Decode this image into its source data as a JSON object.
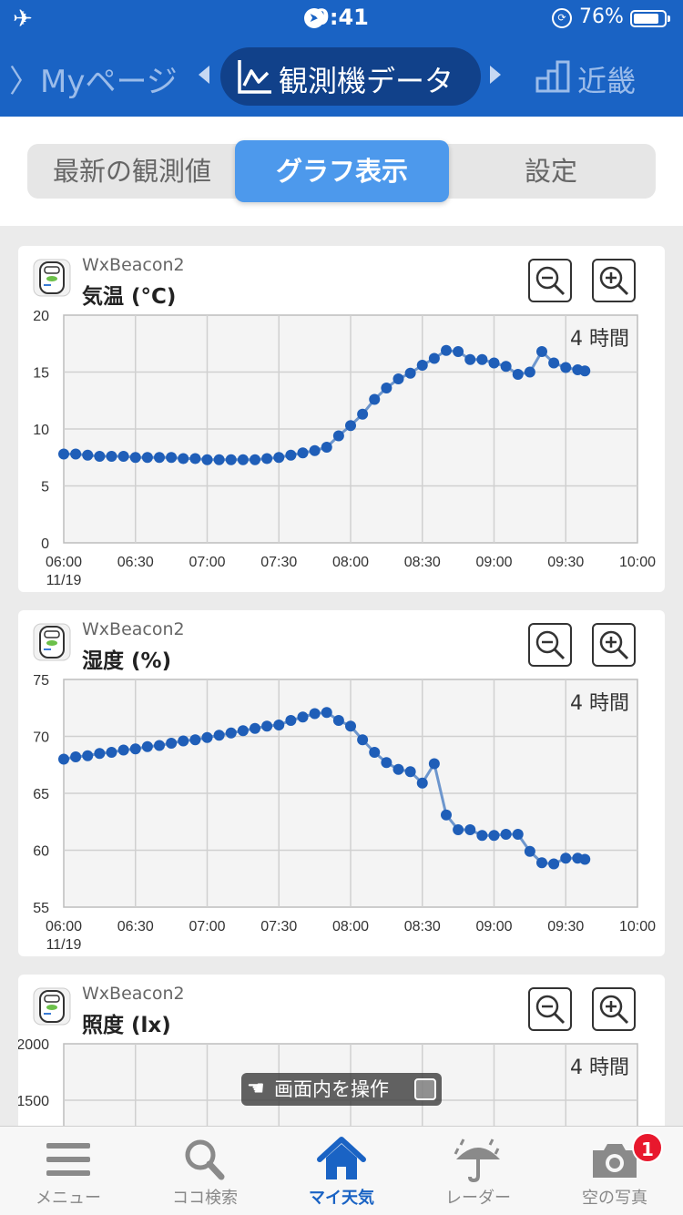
{
  "status_bar": {
    "time": "9:41",
    "battery": "76%",
    "battery_level": 0.76
  },
  "nav": {
    "prev": "〉Myページ",
    "current": "観測機データ",
    "next": "近畿"
  },
  "segments": {
    "items": [
      "最新の観測値",
      "グラフ表示",
      "設定"
    ],
    "selected": "グラフ表示"
  },
  "cards": [
    {
      "device": "WxBeacon2",
      "metric": "気温 (°C)",
      "range": "4 時間"
    },
    {
      "device": "WxBeacon2",
      "metric": "湿度 (%)",
      "range": "4 時間"
    },
    {
      "device": "WxBeacon2",
      "metric": "照度 (lx)",
      "range": "4 時間"
    }
  ],
  "chart_data": [
    {
      "type": "line",
      "title": "気温 (°C)",
      "x_ticks": [
        "06:00",
        "06:30",
        "07:00",
        "07:30",
        "08:00",
        "08:30",
        "09:00",
        "09:30",
        "10:00"
      ],
      "x_date": "11/19",
      "y_ticks": [
        "20",
        "15",
        "10",
        "5",
        "0"
      ],
      "ylim": [
        0,
        20
      ],
      "x": [
        "06:00",
        "06:05",
        "06:10",
        "06:15",
        "06:20",
        "06:25",
        "06:30",
        "06:35",
        "06:40",
        "06:45",
        "06:50",
        "06:55",
        "07:00",
        "07:05",
        "07:10",
        "07:15",
        "07:20",
        "07:25",
        "07:30",
        "07:35",
        "07:40",
        "07:45",
        "07:50",
        "07:55",
        "08:00",
        "08:05",
        "08:10",
        "08:15",
        "08:20",
        "08:25",
        "08:30",
        "08:35",
        "08:40",
        "08:45",
        "08:50",
        "08:55",
        "09:00",
        "09:05",
        "09:10",
        "09:15",
        "09:20",
        "09:25",
        "09:30",
        "09:35",
        "09:38"
      ],
      "values": [
        7.8,
        7.8,
        7.7,
        7.6,
        7.6,
        7.6,
        7.5,
        7.5,
        7.5,
        7.5,
        7.4,
        7.4,
        7.3,
        7.3,
        7.3,
        7.3,
        7.3,
        7.4,
        7.5,
        7.7,
        7.9,
        8.1,
        8.4,
        9.4,
        10.3,
        11.3,
        12.6,
        13.6,
        14.4,
        14.9,
        15.6,
        16.2,
        16.9,
        16.8,
        16.1,
        16.1,
        15.8,
        15.5,
        14.8,
        15.0,
        16.8,
        15.8,
        15.4,
        15.2,
        15.1
      ]
    },
    {
      "type": "line",
      "title": "湿度 (%)",
      "x_ticks": [
        "06:00",
        "06:30",
        "07:00",
        "07:30",
        "08:00",
        "08:30",
        "09:00",
        "09:30",
        "10:00"
      ],
      "x_date": "11/19",
      "y_ticks": [
        "75",
        "70",
        "65",
        "60",
        "55"
      ],
      "ylim": [
        55,
        75
      ],
      "x": [
        "06:00",
        "06:05",
        "06:10",
        "06:15",
        "06:20",
        "06:25",
        "06:30",
        "06:35",
        "06:40",
        "06:45",
        "06:50",
        "06:55",
        "07:00",
        "07:05",
        "07:10",
        "07:15",
        "07:20",
        "07:25",
        "07:30",
        "07:35",
        "07:40",
        "07:45",
        "07:50",
        "07:55",
        "08:00",
        "08:05",
        "08:10",
        "08:15",
        "08:20",
        "08:25",
        "08:30",
        "08:35",
        "08:40",
        "08:45",
        "08:50",
        "08:55",
        "09:00",
        "09:05",
        "09:10",
        "09:15",
        "09:20",
        "09:25",
        "09:30",
        "09:35",
        "09:38"
      ],
      "values": [
        68.0,
        68.2,
        68.3,
        68.5,
        68.6,
        68.8,
        68.9,
        69.1,
        69.2,
        69.4,
        69.6,
        69.7,
        69.9,
        70.1,
        70.3,
        70.5,
        70.7,
        70.9,
        71.0,
        71.4,
        71.7,
        72.0,
        72.1,
        71.4,
        70.9,
        69.7,
        68.6,
        67.7,
        67.1,
        66.9,
        65.9,
        67.6,
        63.1,
        61.8,
        61.8,
        61.3,
        61.3,
        61.4,
        61.4,
        59.9,
        58.9,
        58.8,
        59.3,
        59.3,
        59.2
      ]
    },
    {
      "type": "line",
      "title": "照度 (lx)",
      "y_ticks": [
        "2000",
        "1500"
      ],
      "values": []
    }
  ],
  "overlay": {
    "label": "画面内を操作"
  },
  "tabbar": {
    "items": [
      "メニュー",
      "ココ検索",
      "マイ天気",
      "レーダー",
      "空の写真"
    ],
    "active": "マイ天気",
    "badge": "1"
  },
  "colors": {
    "brand": "#1a63c4",
    "series": "#1f5eb8",
    "series_line": "#6d96cd",
    "accent": "#4d99ec",
    "badge": "#e8182d"
  }
}
